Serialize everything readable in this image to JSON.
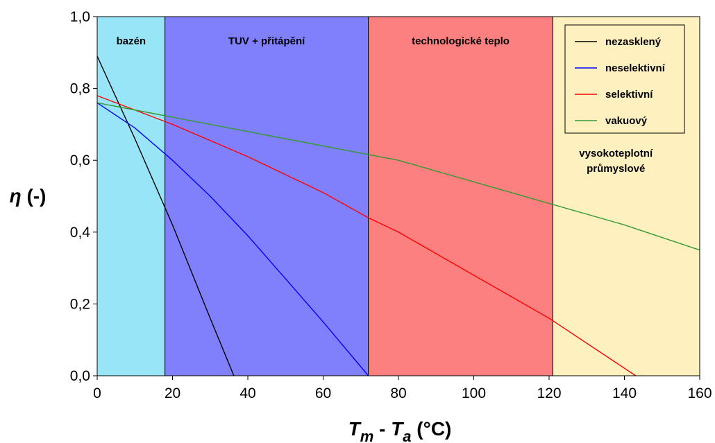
{
  "chart_data": {
    "type": "line",
    "xlim": [
      0,
      160
    ],
    "ylim": [
      0,
      1
    ],
    "x_ticks": [
      "0",
      "20",
      "40",
      "60",
      "80",
      "100",
      "120",
      "140",
      "160"
    ],
    "y_ticks": [
      "0,0",
      "0,2",
      "0,4",
      "0,6",
      "0,8",
      "1,0"
    ],
    "xlabel": {
      "main_1": "T",
      "sub_1": "m",
      "sep": " - ",
      "main_2": "T",
      "sub_2": "a",
      "unit": " (°C)"
    },
    "ylabel": {
      "symbol": "η",
      "unit": " (-)"
    },
    "regions": [
      {
        "label": "bazén",
        "x0": 0,
        "x1": 18,
        "color": "#99e5f8"
      },
      {
        "label": "TUV + přitápění",
        "x0": 18,
        "x1": 72,
        "color": "#8080fd"
      },
      {
        "label": "technologické teplo",
        "x0": 72,
        "x1": 121,
        "color": "#fd8080"
      },
      {
        "label": "vysokoteplotní\nprůmyslové",
        "x0": 121,
        "x1": 160,
        "color": "#fff0c0"
      }
    ],
    "series": [
      {
        "name": "nezasklený",
        "color": "#000000",
        "x": [
          0,
          10,
          20,
          30,
          36.3
        ],
        "y": [
          0.89,
          0.66,
          0.42,
          0.16,
          0.0
        ]
      },
      {
        "name": "neselektivní",
        "color": "#0000ff",
        "x": [
          0,
          10,
          20,
          30,
          40,
          50,
          60,
          72
        ],
        "y": [
          0.76,
          0.69,
          0.6,
          0.5,
          0.39,
          0.27,
          0.15,
          0.0
        ]
      },
      {
        "name": "selektivní",
        "color": "#ff0000",
        "x": [
          0,
          20,
          40,
          60,
          72,
          80,
          100,
          120,
          143
        ],
        "y": [
          0.78,
          0.7,
          0.61,
          0.51,
          0.44,
          0.4,
          0.28,
          0.16,
          0.0
        ]
      },
      {
        "name": "vakuový",
        "color": "#339933",
        "x": [
          0,
          20,
          40,
          60,
          80,
          100,
          120,
          140,
          160
        ],
        "y": [
          0.76,
          0.72,
          0.68,
          0.64,
          0.6,
          0.54,
          0.48,
          0.42,
          0.35
        ]
      }
    ],
    "legend_position": "top-right",
    "grid": false
  }
}
